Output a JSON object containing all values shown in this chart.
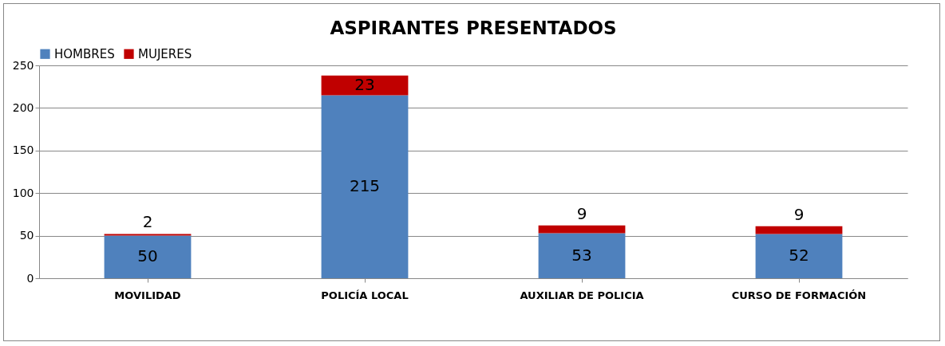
{
  "chart_data": {
    "type": "bar",
    "title": "ASPIRANTES PRESENTADOS",
    "categories": [
      "MOVILIDAD",
      "POLICÍA LOCAL",
      "AUXILIAR DE POLICIA",
      "CURSO DE FORMACIÓN"
    ],
    "series": [
      {
        "name": "HOMBRES",
        "color": "#4f81bd",
        "values": [
          50,
          215,
          53,
          52
        ]
      },
      {
        "name": "MUJERES",
        "color": "#c00000",
        "values": [
          2,
          23,
          9,
          9
        ]
      }
    ],
    "stacked": true,
    "data_labels": true,
    "ylim": [
      0,
      250
    ],
    "yticks": [
      0,
      50,
      100,
      150,
      200,
      250
    ],
    "grid": "y",
    "legend": "top"
  }
}
